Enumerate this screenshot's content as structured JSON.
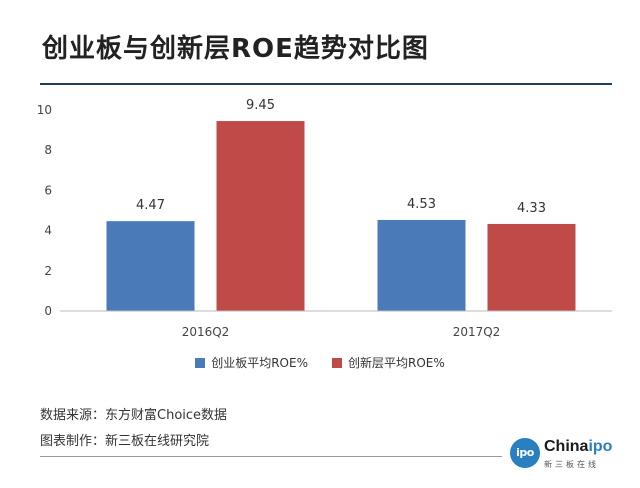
{
  "header": {
    "title": "创业板与创新层ROE趋势对比图"
  },
  "chart_data": {
    "type": "bar",
    "categories": [
      "2016Q2",
      "2017Q2"
    ],
    "series": [
      {
        "name": "创业板平均ROE%",
        "values": [
          4.47,
          4.53
        ],
        "color": "#4a7ab8"
      },
      {
        "name": "创新层平均ROE%",
        "values": [
          9.45,
          4.33
        ],
        "color": "#bf4a47"
      }
    ],
    "data_labels": [
      [
        "4.47",
        "4.53"
      ],
      [
        "9.45",
        "4.33"
      ]
    ],
    "ylim": [
      0,
      10
    ],
    "yticks": [
      "0",
      "2",
      "4",
      "6",
      "8",
      "10"
    ],
    "grid": false,
    "legend_position": "bottom"
  },
  "footer": {
    "source": "数据来源：东方财富Choice数据",
    "made_by": "图表制作：新三板在线研究院"
  },
  "logo": {
    "mark": "ipo",
    "brand_prefix": "China",
    "brand_suffix": "ipo",
    "subtitle": "新三板在线"
  }
}
